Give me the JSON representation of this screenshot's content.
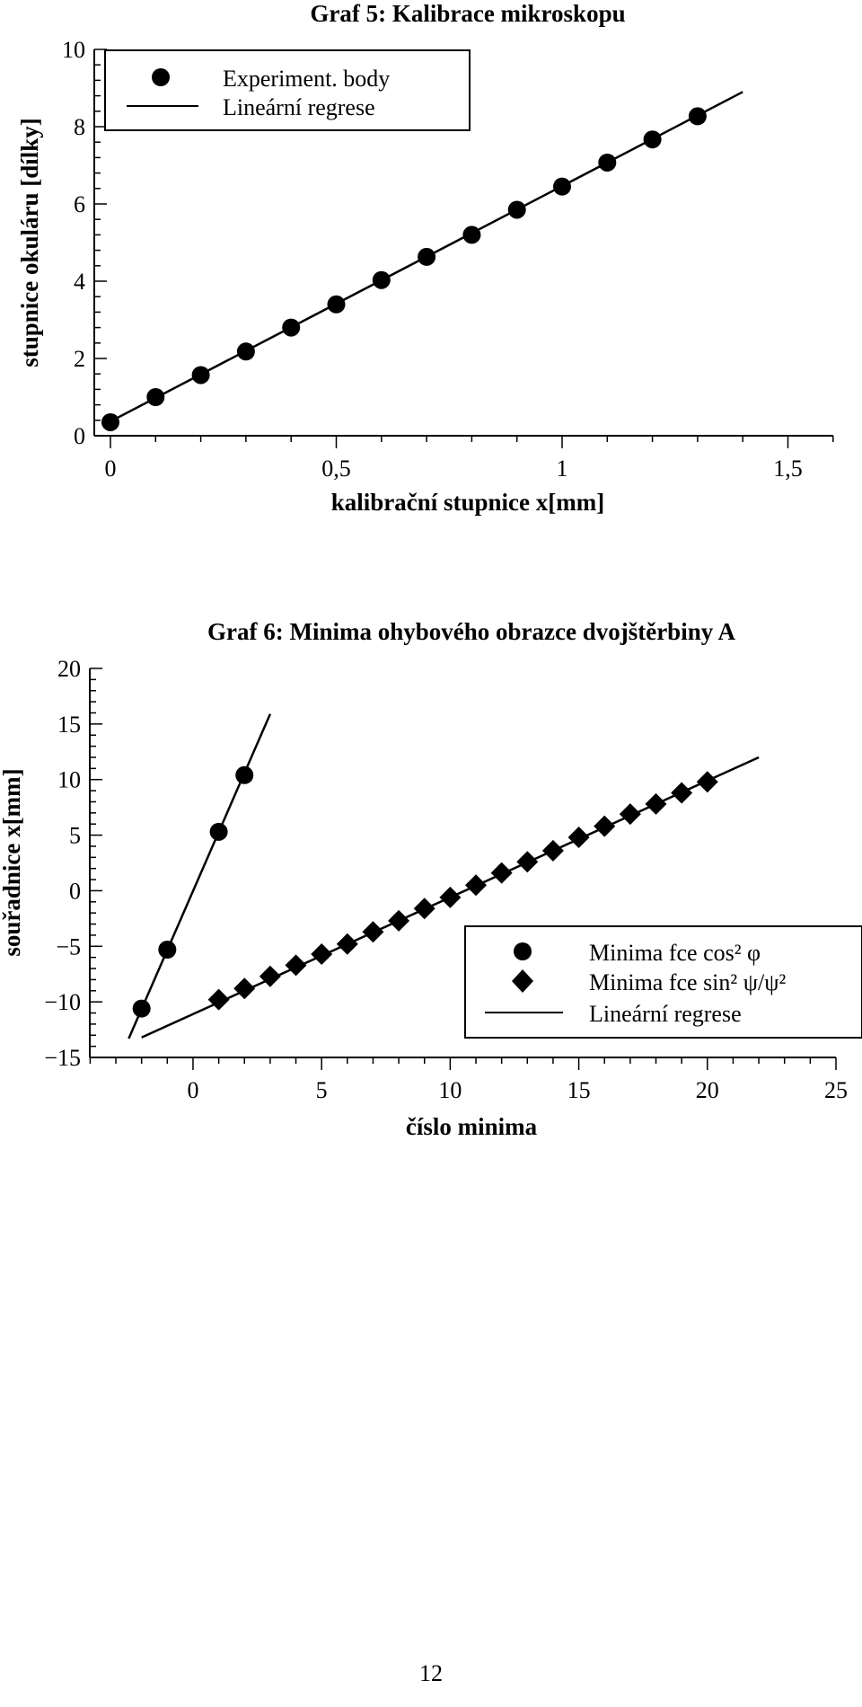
{
  "page": {
    "number": "12"
  },
  "chart_data": [
    {
      "type": "scatter",
      "title": "Graf 5: Kalibrace mikroskopu",
      "xlabel": "kalibrační stupnice x[mm]",
      "ylabel": "stupnice okuláru [dílky]",
      "xlim": [
        -0.05,
        1.6
      ],
      "ylim": [
        0,
        10
      ],
      "xticks": [
        0,
        0.5,
        1,
        1.5
      ],
      "xtick_labels": [
        "0",
        "0,5",
        "1",
        "1,5"
      ],
      "yticks": [
        0,
        2,
        4,
        6,
        8,
        10
      ],
      "ytick_labels": [
        "0",
        "2",
        "4",
        "6",
        "8",
        "10"
      ],
      "grid": false,
      "legend_position": "top-left",
      "legend": [
        "Experiment. body",
        "Lineární regrese"
      ],
      "series": [
        {
          "name": "Experiment. body",
          "kind": "points",
          "marker": "circle",
          "x": [
            0,
            0.1,
            0.2,
            0.3,
            0.4,
            0.5,
            0.6,
            0.7,
            0.8,
            0.9,
            1.0,
            1.1,
            1.2,
            1.3
          ],
          "y": [
            0.35,
            1.0,
            1.57,
            2.18,
            2.8,
            3.4,
            4.03,
            4.63,
            5.2,
            5.85,
            6.45,
            7.07,
            7.67,
            8.27
          ]
        },
        {
          "name": "Lineární regrese",
          "kind": "line",
          "x": [
            0,
            1.4
          ],
          "y": [
            0.37,
            8.9
          ]
        }
      ]
    },
    {
      "type": "scatter",
      "title": "Graf 6: Minima ohybového obrazce dvojštěrbiny A",
      "xlabel": "číslo minima",
      "ylabel": "souřadnice x[mm]",
      "xlim": [
        -4,
        25
      ],
      "ylim": [
        -15,
        20
      ],
      "xticks": [
        0,
        5,
        10,
        15,
        20,
        25
      ],
      "xtick_labels": [
        "0",
        "5",
        "10",
        "15",
        "20",
        "25"
      ],
      "yticks": [
        -15,
        -10,
        -5,
        0,
        5,
        10,
        15,
        20
      ],
      "ytick_labels": [
        "−15",
        "−10",
        "−5",
        "0",
        "5",
        "10",
        "15",
        "20"
      ],
      "grid": false,
      "legend_position": "bottom-right",
      "legend": [
        "Minima fce cos² φ",
        "Minima fce sin² ψ/ψ²",
        "Lineární regrese"
      ],
      "series": [
        {
          "name": "Minima fce cos² φ",
          "kind": "points",
          "marker": "circle",
          "x": [
            -2,
            -1,
            1,
            2
          ],
          "y": [
            -10.6,
            -5.3,
            5.3,
            10.4
          ]
        },
        {
          "name": "Minima fce sin² ψ/ψ²",
          "kind": "points",
          "marker": "diamond",
          "x": [
            1,
            2,
            3,
            4,
            5,
            6,
            7,
            8,
            9,
            10,
            11,
            12,
            13,
            14,
            15,
            16,
            17,
            18,
            19,
            20
          ],
          "y": [
            -9.8,
            -8.8,
            -7.7,
            -6.7,
            -5.7,
            -4.8,
            -3.7,
            -2.7,
            -1.6,
            -0.6,
            0.5,
            1.6,
            2.6,
            3.6,
            4.8,
            5.8,
            6.9,
            7.8,
            8.8,
            9.8
          ]
        },
        {
          "name": "Lineární regrese",
          "kind": "line",
          "x": [
            -2.5,
            3
          ],
          "y": [
            -13.3,
            15.9
          ]
        },
        {
          "name": "Lineární regrese",
          "kind": "line",
          "x": [
            -2,
            22
          ],
          "y": [
            -13.2,
            12.0
          ]
        }
      ]
    }
  ]
}
